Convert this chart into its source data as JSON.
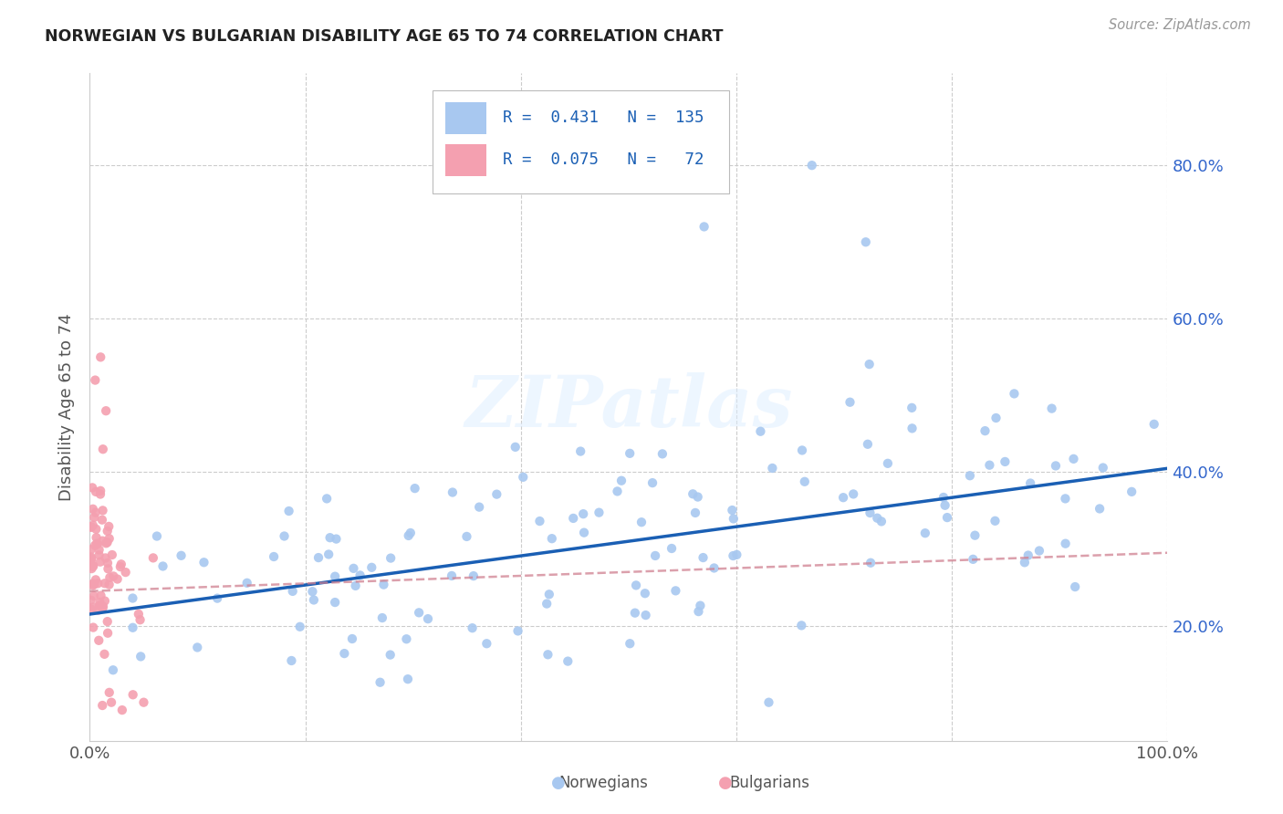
{
  "title": "NORWEGIAN VS BULGARIAN DISABILITY AGE 65 TO 74 CORRELATION CHART",
  "source": "Source: ZipAtlas.com",
  "ylabel": "Disability Age 65 to 74",
  "norwegians_label": "Norwegians",
  "bulgarians_label": "Bulgarians",
  "legend_R_norwegian": "0.431",
  "legend_N_norwegian": "135",
  "legend_R_bulgarian": "0.075",
  "legend_N_bulgarian": "72",
  "watermark": "ZIPatlas",
  "norwegian_color": "#a8c8f0",
  "bulgarian_color": "#f4a0b0",
  "norwegian_line_color": "#1a5fb4",
  "bulgarian_line_color": "#d08090",
  "background_color": "#ffffff",
  "grid_color": "#cccccc",
  "xlim": [
    0.0,
    1.0
  ],
  "ylim": [
    0.05,
    0.92
  ],
  "ytick_values": [
    0.2,
    0.4,
    0.6,
    0.8
  ],
  "ytick_labels": [
    "20.0%",
    "40.0%",
    "60.0%",
    "80.0%"
  ],
  "norw_line_y0": 0.215,
  "norw_line_y1": 0.405,
  "bulg_line_y0": 0.245,
  "bulg_line_y1": 0.295
}
